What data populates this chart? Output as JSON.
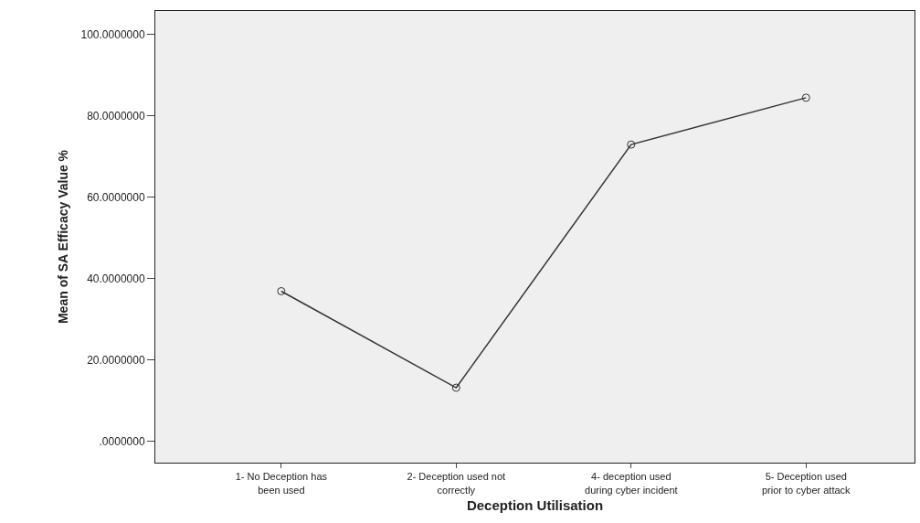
{
  "chart_data": {
    "type": "line",
    "xlabel": "Deception Utilisation",
    "ylabel": "Mean of SA Efficacy Value %",
    "categories": [
      "1- No Deception has been used",
      "2- Deception used not correctly",
      "4- deception used during cyber incident",
      "5- Deception used prior to cyber attack"
    ],
    "series": [
      {
        "color": "#333333",
        "values": [
          36.9,
          13.2,
          72.9,
          84.4
        ]
      }
    ],
    "ylim": [
      -5.2,
      105.7
    ],
    "yticks": [
      {
        "value": 0,
        "label": ".0000000"
      },
      {
        "value": 20,
        "label": "20.0000000"
      },
      {
        "value": 40,
        "label": "40.0000000"
      },
      {
        "value": 60,
        "label": "60.0000000"
      },
      {
        "value": 80,
        "label": "80.0000000"
      },
      {
        "value": 100,
        "label": "100.0000000"
      }
    ],
    "grid": false,
    "legend": false,
    "marker": "circle",
    "line_style": "solid"
  }
}
